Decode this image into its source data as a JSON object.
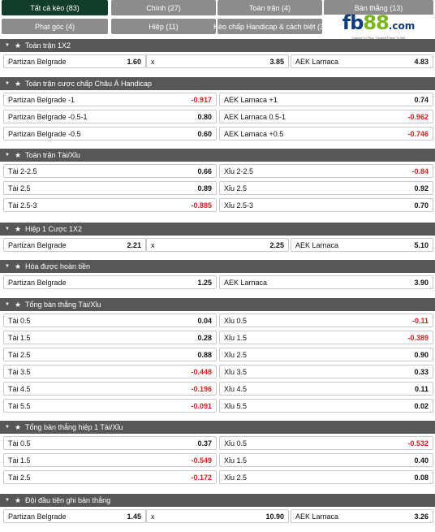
{
  "tabs": [
    {
      "label": "Tất cả kèo (83)",
      "active": true
    },
    {
      "label": "Chính (27)",
      "active": false
    },
    {
      "label": "Toàn trận (4)",
      "active": false
    },
    {
      "label": "Bàn thắng (13)",
      "active": false
    },
    {
      "label": "Phạt góc (4)",
      "active": false
    },
    {
      "label": "Hiệp (11)",
      "active": false
    },
    {
      "label": "Kèo chấp Handicap & cách biệt (3)",
      "active": false
    }
  ],
  "logo": {
    "fb": "fb",
    "num": "88",
    "com": ".com",
    "tagline": "Games To Play. Trusted Place To Bet"
  },
  "sections": [
    {
      "title": "Toàn trận 1X2",
      "cols": 3,
      "rows": [
        [
          {
            "label": "Partizan Belgrade",
            "value": "1.60"
          },
          {
            "label": "x",
            "value": "3.85"
          },
          {
            "label": "AEK Larnaca",
            "value": "4.83"
          }
        ]
      ]
    },
    {
      "title": "Toàn trận cược chấp Châu Á Handicap",
      "cols": 2,
      "rows": [
        [
          {
            "label": "Partizan Belgrade -1",
            "value": "-0.917"
          },
          {
            "label": "AEK Larnaca +1",
            "value": "0.74"
          }
        ],
        [
          {
            "label": "Partizan Belgrade -0.5-1",
            "value": "0.80"
          },
          {
            "label": "AEK Larnaca 0.5-1",
            "value": "-0.962"
          }
        ],
        [
          {
            "label": "Partizan Belgrade -0.5",
            "value": "0.60"
          },
          {
            "label": "AEK Larnaca +0.5",
            "value": "-0.746"
          }
        ]
      ]
    },
    {
      "title": "Toàn trận Tài/Xỉu",
      "cols": 2,
      "rows": [
        [
          {
            "label": "Tài 2-2.5",
            "value": "0.66"
          },
          {
            "label": "Xỉu 2-2.5",
            "value": "-0.84"
          }
        ],
        [
          {
            "label": "Tài 2.5",
            "value": "0.89"
          },
          {
            "label": "Xỉu 2.5",
            "value": "0.92"
          }
        ],
        [
          {
            "label": "Tài 2.5-3",
            "value": "-0.885"
          },
          {
            "label": "Xỉu 2.5-3",
            "value": "0.70"
          }
        ]
      ]
    },
    {
      "title": "Hiệp 1 Cược 1X2",
      "cols": 3,
      "rows": [
        [
          {
            "label": "Partizan Belgrade",
            "value": "2.21"
          },
          {
            "label": "x",
            "value": "2.25"
          },
          {
            "label": "AEK Larnaca",
            "value": "5.10"
          }
        ]
      ]
    },
    {
      "title": "Hòa được hoàn tiền",
      "cols": 2,
      "rows": [
        [
          {
            "label": "Partizan Belgrade",
            "value": "1.25"
          },
          {
            "label": "AEK Larnaca",
            "value": "3.90"
          }
        ]
      ]
    },
    {
      "title": "Tổng bàn thắng Tài/Xỉu",
      "cols": 2,
      "rows": [
        [
          {
            "label": "Tài 0.5",
            "value": "0.04"
          },
          {
            "label": "Xỉu 0.5",
            "value": "-0.11"
          }
        ],
        [
          {
            "label": "Tài 1.5",
            "value": "0.28"
          },
          {
            "label": "Xỉu 1.5",
            "value": "-0.389"
          }
        ],
        [
          {
            "label": "Tài 2.5",
            "value": "0.88"
          },
          {
            "label": "Xỉu 2.5",
            "value": "0.90"
          }
        ],
        [
          {
            "label": "Tài 3.5",
            "value": "-0.448"
          },
          {
            "label": "Xỉu 3.5",
            "value": "0.33"
          }
        ],
        [
          {
            "label": "Tài 4.5",
            "value": "-0.196"
          },
          {
            "label": "Xỉu 4.5",
            "value": "0.11"
          }
        ],
        [
          {
            "label": "Tài 5.5",
            "value": "-0.091"
          },
          {
            "label": "Xỉu 5.5",
            "value": "0.02"
          }
        ]
      ]
    },
    {
      "title": "Tổng bàn thắng hiệp 1 Tài/Xỉu",
      "cols": 2,
      "rows": [
        [
          {
            "label": "Tài 0.5",
            "value": "0.37"
          },
          {
            "label": "Xỉu 0.5",
            "value": "-0.532"
          }
        ],
        [
          {
            "label": "Tài 1.5",
            "value": "-0.549"
          },
          {
            "label": "Xỉu 1.5",
            "value": "0.40"
          }
        ],
        [
          {
            "label": "Tài 2.5",
            "value": "-0.172"
          },
          {
            "label": "Xỉu 2.5",
            "value": "0.08"
          }
        ]
      ]
    },
    {
      "title": "Đội đầu tiên ghi bàn thắng",
      "cols": 3,
      "rows": [
        [
          {
            "label": "Partizan Belgrade",
            "value": "1.45"
          },
          {
            "label": "x",
            "value": "10.90"
          },
          {
            "label": "AEK Larnaca",
            "value": "3.26"
          }
        ]
      ]
    }
  ],
  "colors": {
    "header_bg": "#575757",
    "active_tab": "#133d2b",
    "tab_bg": "#8c8c8c",
    "negative": "#e01b1b"
  }
}
